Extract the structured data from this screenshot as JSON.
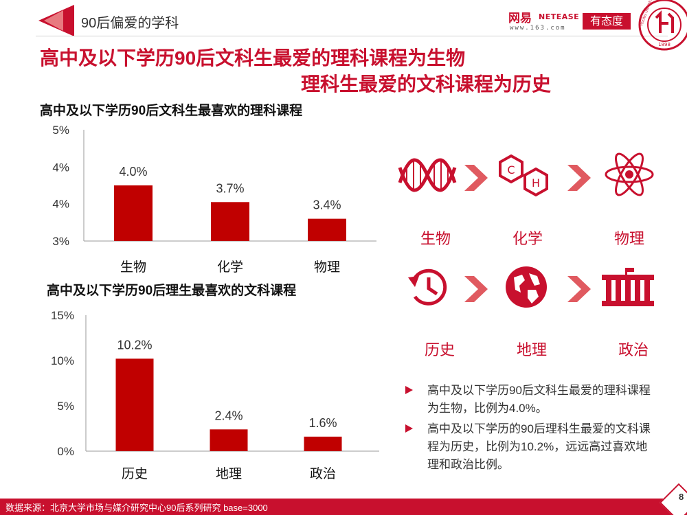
{
  "header": {
    "section_title": "90后偏爱的学科",
    "logo_netease_cn": "网易",
    "logo_netease_en": "NETEASE",
    "logo_netease_url": "www.163.com",
    "logo_youtai": "有态度",
    "seal_year": "1898",
    "seal_text": "PEKING UNIVERSITY"
  },
  "headline": {
    "line1": "高中及以下学历90后文科生最爱的理科课程为生物",
    "line2": "理科生最爱的文科课程为历史"
  },
  "chart_data": [
    {
      "type": "bar",
      "title": "高中及以下学历90后文科生最喜欢的理科课程",
      "categories": [
        "生物",
        "化学",
        "物理"
      ],
      "values": [
        4.0,
        3.7,
        3.4
      ],
      "value_labels": [
        "4.0%",
        "3.7%",
        "3.4%"
      ],
      "ylim": [
        3,
        5
      ],
      "ytick_values": [
        3,
        3.67,
        4.33,
        5
      ],
      "ytick_labels": [
        "3%",
        "4%",
        "4%",
        "5%"
      ],
      "xlabel": "",
      "ylabel": "",
      "color": "#c00000"
    },
    {
      "type": "bar",
      "title": "高中及以下学历90后理生最喜欢的文科课程",
      "categories": [
        "历史",
        "地理",
        "政治"
      ],
      "values": [
        10.2,
        2.4,
        1.6
      ],
      "value_labels": [
        "10.2%",
        "2.4%",
        "1.6%"
      ],
      "ylim": [
        0,
        15
      ],
      "ytick_values": [
        0,
        5,
        10,
        15
      ],
      "ytick_labels": [
        "0%",
        "5%",
        "10%",
        "15%"
      ],
      "xlabel": "",
      "ylabel": "",
      "color": "#c00000"
    }
  ],
  "icons": {
    "science": [
      "生物",
      "化学",
      "物理"
    ],
    "liberal": [
      "历史",
      "地理",
      "政治"
    ],
    "chem_letters": [
      "C",
      "H"
    ]
  },
  "bullets": [
    "高中及以下学历90后文科生最爱的理科课程为生物，比例为4.0%。",
    "高中及以下学历的90后理科生最爱的文科课程为历史，比例为10.2%，远远高过喜欢地理和政治比例。"
  ],
  "footer": {
    "source": "数据来源：北京大学市场与媒介研究中心90后系列研究 base=3000",
    "page": "8"
  },
  "colors": {
    "accent": "#c8102e",
    "bar": "#c00000"
  }
}
